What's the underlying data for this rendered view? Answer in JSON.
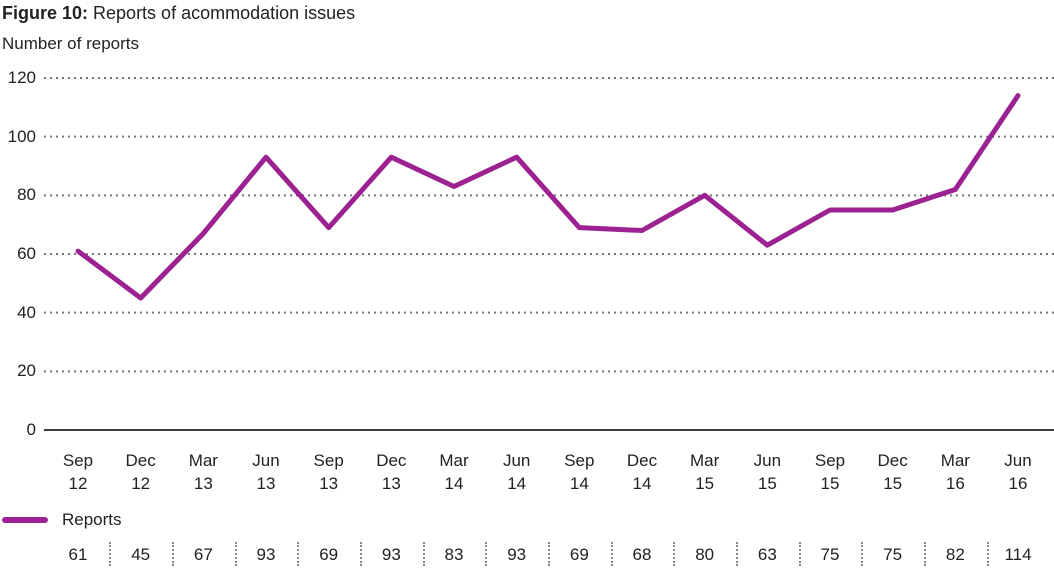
{
  "header": {
    "title_prefix": "Figure 10:",
    "title_rest": "Reports of acommodation issues",
    "subtitle": "Number of reports"
  },
  "legend": {
    "label": "Reports"
  },
  "colors": {
    "line": "#9c2191",
    "text": "#232122",
    "grid": "#767676",
    "axis": "#3c3c3c",
    "separator": "#8a8a8a"
  },
  "chart_data": {
    "type": "line",
    "title": "Figure 10: Reports of acommodation issues",
    "ylabel": "Number of reports",
    "xlabel": "",
    "categories": [
      "Sep 12",
      "Dec 12",
      "Mar 13",
      "Jun 13",
      "Sep 13",
      "Dec 13",
      "Mar 14",
      "Jun 14",
      "Sep 14",
      "Dec 14",
      "Mar 15",
      "Jun 15",
      "Sep 15",
      "Dec 15",
      "Mar 16",
      "Jun 16"
    ],
    "series": [
      {
        "name": "Reports",
        "color": "#9c2191",
        "values": [
          61,
          45,
          67,
          93,
          69,
          93,
          83,
          93,
          69,
          68,
          80,
          63,
          75,
          75,
          82,
          114
        ]
      }
    ],
    "ylim": [
      0,
      120
    ],
    "yticks": [
      0,
      20,
      40,
      60,
      80,
      100,
      120
    ],
    "grid": "horizontal-dotted",
    "legend_position": "bottom-left",
    "value_labels_row": true
  }
}
